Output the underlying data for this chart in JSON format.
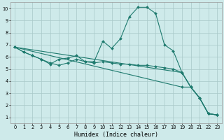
{
  "xlabel": "Humidex (Indice chaleur)",
  "bg_color": "#ceeaea",
  "grid_color": "#a8c8c8",
  "line_color": "#1e7a6e",
  "xlim": [
    -0.5,
    23.5
  ],
  "ylim": [
    0.5,
    10.5
  ],
  "xticks": [
    0,
    1,
    2,
    3,
    4,
    5,
    6,
    7,
    8,
    9,
    10,
    11,
    12,
    13,
    14,
    15,
    16,
    17,
    18,
    19,
    20,
    21,
    22,
    23
  ],
  "yticks": [
    1,
    2,
    3,
    4,
    5,
    6,
    7,
    8,
    9,
    10
  ],
  "series1": [
    [
      0,
      6.8
    ],
    [
      1,
      6.4
    ],
    [
      2,
      6.1
    ],
    [
      3,
      5.8
    ],
    [
      4,
      5.4
    ],
    [
      5,
      5.8
    ],
    [
      6,
      5.9
    ],
    [
      7,
      6.1
    ],
    [
      8,
      5.6
    ],
    [
      9,
      5.6
    ],
    [
      10,
      7.3
    ],
    [
      11,
      6.7
    ],
    [
      12,
      7.5
    ],
    [
      13,
      9.3
    ],
    [
      14,
      10.1
    ],
    [
      15,
      10.1
    ],
    [
      16,
      9.6
    ],
    [
      17,
      7.0
    ],
    [
      18,
      6.5
    ],
    [
      19,
      4.7
    ],
    [
      20,
      3.5
    ],
    [
      21,
      2.6
    ],
    [
      22,
      1.3
    ],
    [
      23,
      1.2
    ]
  ],
  "series2": [
    [
      0,
      6.8
    ],
    [
      1,
      6.4
    ],
    [
      2,
      6.1
    ],
    [
      3,
      5.8
    ],
    [
      4,
      5.5
    ],
    [
      5,
      5.3
    ],
    [
      6,
      5.5
    ],
    [
      7,
      5.8
    ],
    [
      8,
      5.6
    ],
    [
      9,
      5.5
    ],
    [
      10,
      5.6
    ],
    [
      11,
      5.5
    ],
    [
      12,
      5.4
    ],
    [
      13,
      5.4
    ],
    [
      14,
      5.3
    ],
    [
      15,
      5.3
    ],
    [
      16,
      5.2
    ],
    [
      17,
      5.1
    ],
    [
      18,
      5.0
    ],
    [
      19,
      4.7
    ],
    [
      20,
      3.5
    ],
    [
      21,
      2.6
    ],
    [
      22,
      1.3
    ],
    [
      23,
      1.2
    ]
  ],
  "series3": [
    [
      0,
      6.8
    ],
    [
      19,
      3.5
    ],
    [
      20,
      3.5
    ],
    [
      21,
      2.6
    ],
    [
      22,
      1.3
    ],
    [
      23,
      1.2
    ]
  ],
  "series4": [
    [
      0,
      6.8
    ],
    [
      19,
      4.7
    ],
    [
      20,
      3.5
    ],
    [
      21,
      2.6
    ],
    [
      22,
      1.3
    ],
    [
      23,
      1.2
    ]
  ]
}
